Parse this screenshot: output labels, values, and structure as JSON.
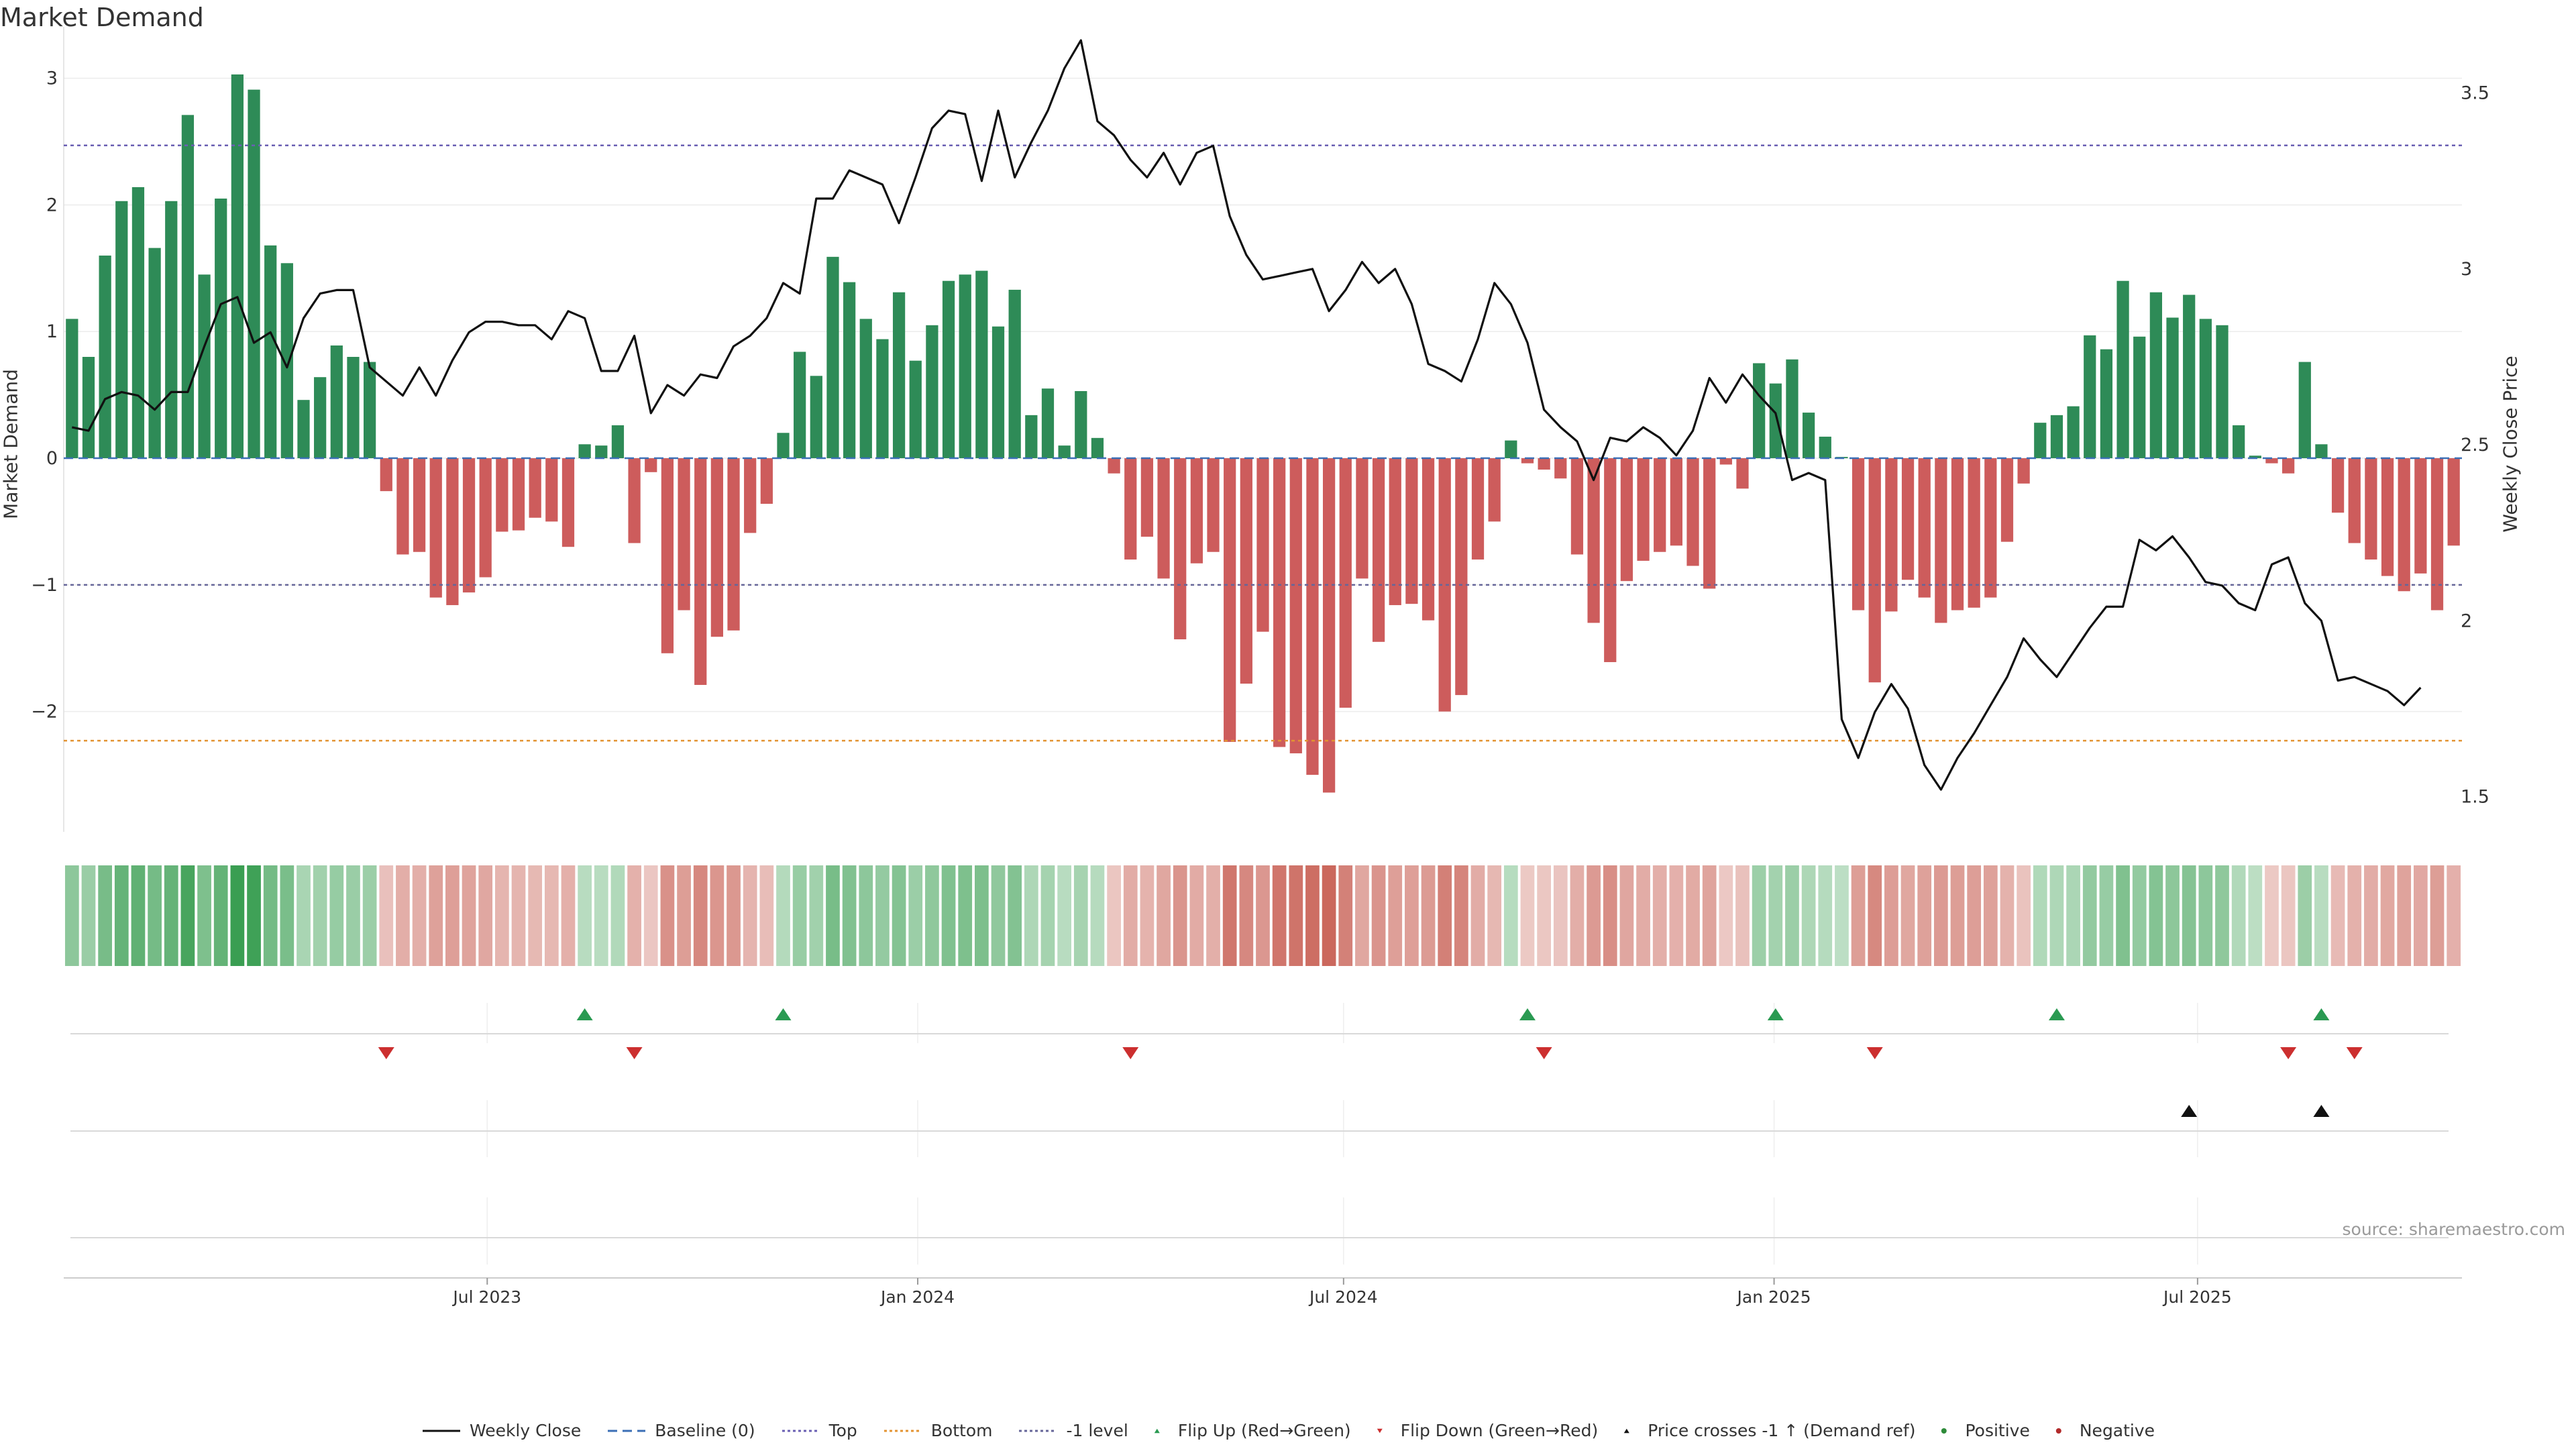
{
  "chart_data": {
    "type": "bar",
    "title": "Market Demand",
    "ylabel_left": "Market Demand",
    "ylabel_right": "Weekly Close Price",
    "ylim_left": [
      -2.95,
      3.3
    ],
    "ylim_right": [
      1.4,
      3.65
    ],
    "yticks_left": [
      {
        "v": 3,
        "label": "3"
      },
      {
        "v": 2,
        "label": "2"
      },
      {
        "v": 1,
        "label": "1"
      },
      {
        "v": 0,
        "label": "0"
      },
      {
        "v": -1,
        "label": "−1"
      },
      {
        "v": -2,
        "label": "−2"
      }
    ],
    "yticks_right": [
      {
        "v": 3.5,
        "label": "3.5"
      },
      {
        "v": 3,
        "label": "3"
      },
      {
        "v": 2.5,
        "label": "2.5"
      },
      {
        "v": 2,
        "label": "2"
      },
      {
        "v": 1.5,
        "label": "1.5"
      }
    ],
    "x_start_date": "2023-01-01",
    "x_end_date": "2025-10-22",
    "x_tick_dates": [
      {
        "date": "2023-07-01",
        "label": "Jul 2023"
      },
      {
        "date": "2024-01-01",
        "label": "Jan 2024"
      },
      {
        "date": "2024-07-01",
        "label": "Jul 2024"
      },
      {
        "date": "2025-01-01",
        "label": "Jan 2025"
      },
      {
        "date": "2025-07-01",
        "label": "Jul 2025"
      }
    ],
    "reference_lines": {
      "top": 2.47,
      "baseline": 0,
      "bottom": -2.23,
      "minus_one": -1
    },
    "demand": [
      1.1,
      0.8,
      1.6,
      2.03,
      2.14,
      1.66,
      2.03,
      2.71,
      1.45,
      2.05,
      3.03,
      2.91,
      1.68,
      1.54,
      0.46,
      0.64,
      0.89,
      0.8,
      0.76,
      -0.26,
      -0.76,
      -0.74,
      -1.1,
      -1.16,
      -1.06,
      -0.94,
      -0.58,
      -0.57,
      -0.47,
      -0.5,
      -0.7,
      0.11,
      0.1,
      0.26,
      -0.67,
      -0.11,
      -1.54,
      -1.2,
      -1.79,
      -1.41,
      -1.36,
      -0.59,
      -0.36,
      0.2,
      0.84,
      0.65,
      1.59,
      1.39,
      1.1,
      0.94,
      1.31,
      0.77,
      1.05,
      1.4,
      1.45,
      1.48,
      1.04,
      1.33,
      0.34,
      0.55,
      0.1,
      0.53,
      0.16,
      -0.12,
      -0.8,
      -0.62,
      -0.95,
      -1.43,
      -0.83,
      -0.74,
      -2.24,
      -1.78,
      -1.37,
      -2.28,
      -2.33,
      -2.5,
      -2.64,
      -1.97,
      -0.95,
      -1.45,
      -1.16,
      -1.15,
      -1.28,
      -2,
      -1.87,
      -0.8,
      -0.5,
      0.14,
      -0.04,
      -0.09,
      -0.16,
      -0.76,
      -1.3,
      -1.61,
      -0.97,
      -0.81,
      -0.74,
      -0.69,
      -0.85,
      -1.03,
      -0.05,
      -0.24,
      0.75,
      0.59,
      0.78,
      0.36,
      0.17,
      0.01,
      -1.2,
      -1.77,
      -1.21,
      -0.96,
      -1.1,
      -1.3,
      -1.2,
      -1.18,
      -1.1,
      -0.66,
      -0.2,
      0.28,
      0.34,
      0.41,
      0.97,
      0.86,
      1.4,
      0.96,
      1.31,
      1.11,
      1.29,
      1.1,
      1.05,
      0.26,
      0.02,
      -0.04,
      -0.12,
      0.76,
      0.11,
      -0.43,
      -0.67,
      -0.8,
      -0.93,
      -1.05,
      -0.91,
      -1.2,
      -0.69
    ],
    "weekly_close": [
      2.55,
      2.54,
      2.63,
      2.65,
      2.64,
      2.6,
      2.65,
      2.65,
      2.78,
      2.9,
      2.92,
      2.79,
      2.82,
      2.72,
      2.86,
      2.93,
      2.94,
      2.94,
      2.72,
      2.68,
      2.64,
      2.72,
      2.64,
      2.74,
      2.82,
      2.85,
      2.85,
      2.84,
      2.84,
      2.8,
      2.88,
      2.86,
      2.71,
      2.71,
      2.81,
      2.59,
      2.67,
      2.64,
      2.7,
      2.69,
      2.78,
      2.81,
      2.86,
      2.96,
      2.93,
      3.2,
      3.2,
      3.28,
      3.26,
      3.24,
      3.13,
      3.26,
      3.4,
      3.45,
      3.44,
      3.25,
      3.45,
      3.26,
      3.36,
      3.45,
      3.57,
      3.65,
      3.42,
      3.38,
      3.31,
      3.26,
      3.33,
      3.24,
      3.33,
      3.35,
      3.15,
      3.04,
      2.97,
      2.98,
      2.99,
      3,
      2.88,
      2.94,
      3.02,
      2.96,
      3,
      2.9,
      2.73,
      2.71,
      2.68,
      2.8,
      2.96,
      2.9,
      2.79,
      2.6,
      2.55,
      2.51,
      2.4,
      2.52,
      2.51,
      2.55,
      2.52,
      2.47,
      2.54,
      2.69,
      2.62,
      2.7,
      2.64,
      2.59,
      2.4,
      2.42,
      2.4,
      1.72,
      1.61,
      1.74,
      1.82,
      1.75,
      1.59,
      1.52,
      1.61,
      1.68,
      1.76,
      1.84,
      1.95,
      1.89,
      1.84,
      1.91,
      1.98,
      2.04,
      2.04,
      2.23,
      2.2,
      2.24,
      2.18,
      2.11,
      2.1,
      2.05,
      2.03,
      2.16,
      2.18,
      2.05,
      2,
      1.83,
      1.84,
      1.82,
      1.8,
      1.76,
      1.81
    ],
    "flip_up_weeks": [
      31,
      43,
      88,
      103,
      120,
      136
    ],
    "flip_down_weeks": [
      19,
      34,
      64,
      89,
      109,
      134,
      138
    ],
    "price_cross_weeks": [
      128,
      136
    ],
    "series": [
      {
        "name": "Weekly Close",
        "color": "#111111"
      },
      {
        "name": "Baseline (0)",
        "color": "#3b6fb6"
      },
      {
        "name": "Top",
        "color": "#6a5fb3"
      },
      {
        "name": "Bottom",
        "color": "#e39332"
      },
      {
        "name": "-1 level",
        "color": "#666699"
      },
      {
        "name": "Flip Up (Red→Green)",
        "color": "#2a9a52"
      },
      {
        "name": "Flip Down (Green→Red)",
        "color": "#cc2f2f"
      },
      {
        "name": "Price crosses -1 ↑ (Demand ref)",
        "color": "#111111"
      },
      {
        "name": "Positive",
        "color": "#2e8b3a"
      },
      {
        "name": "Negative",
        "color": "#b22a2a"
      }
    ],
    "colors": {
      "positive_bar": "#2e8b57",
      "negative_bar": "#cd5c5c",
      "heat_positive": "#3a9e52",
      "heat_negative": "#c65a4e"
    }
  },
  "source_note": "source: sharemaestro.com"
}
